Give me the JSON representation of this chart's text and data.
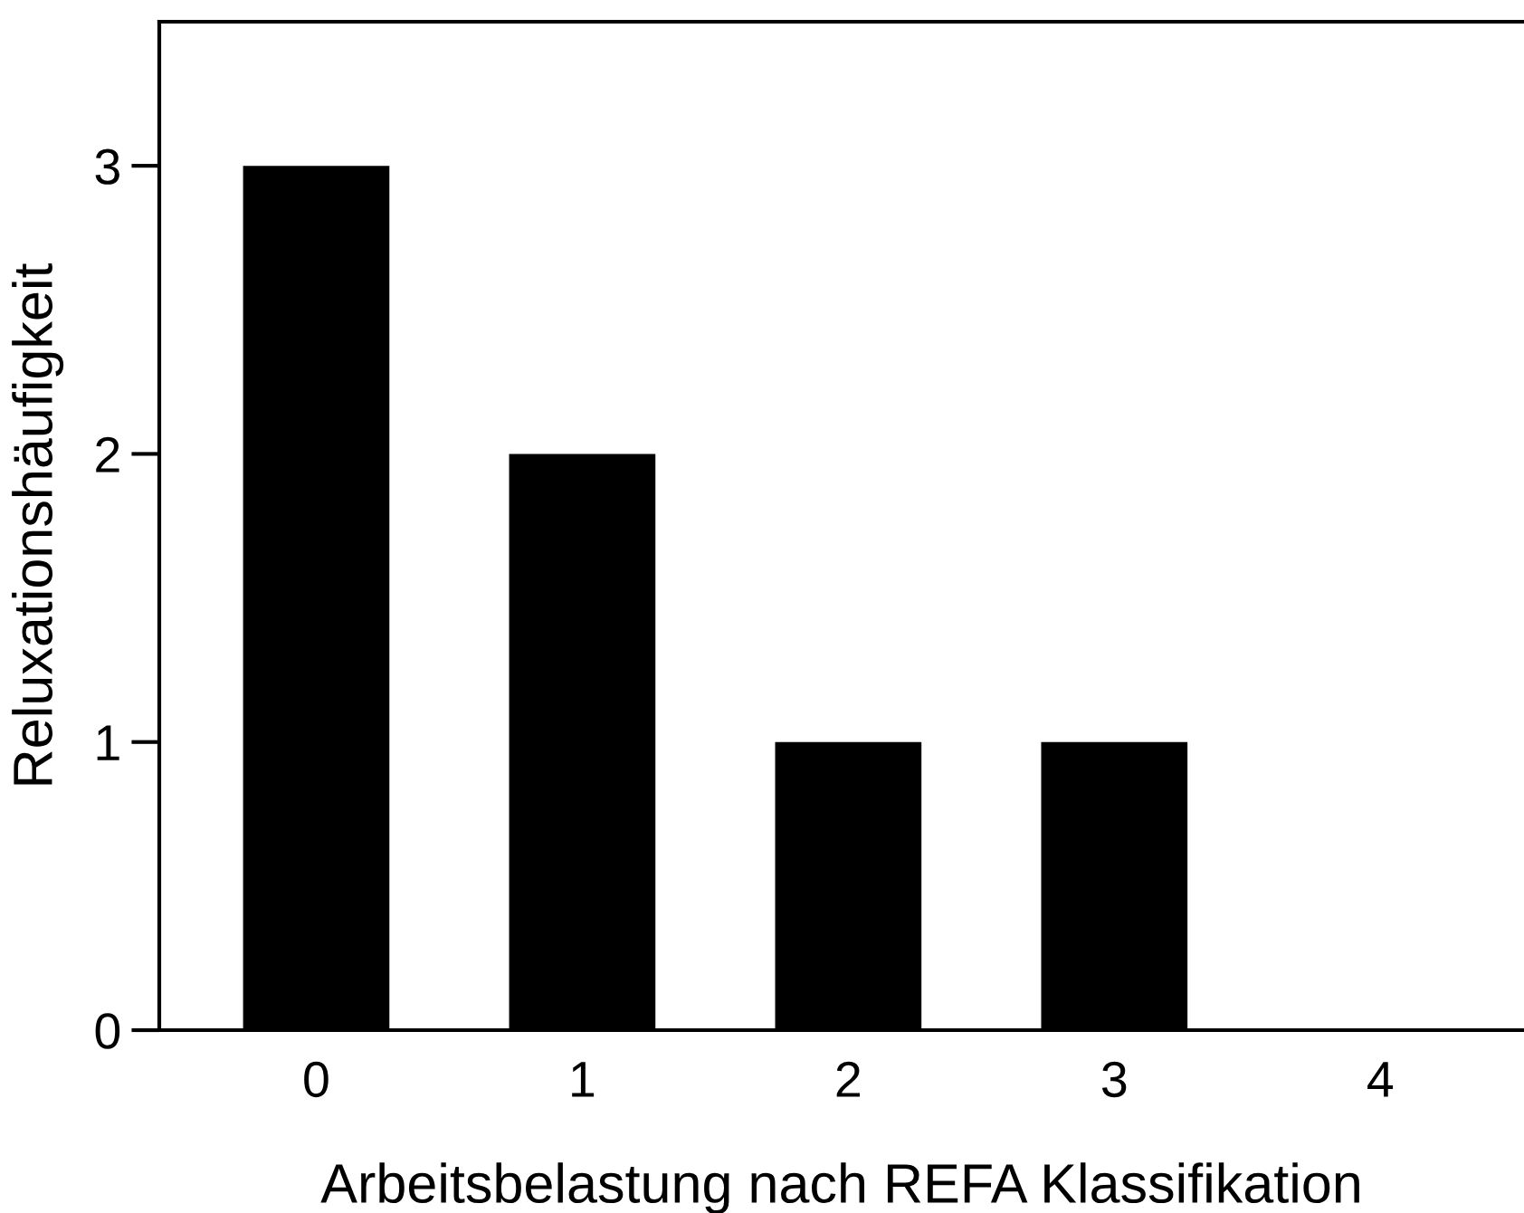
{
  "chart_data": {
    "type": "bar",
    "xlabel": "Arbeitsbelastung nach REFA Klassifikation",
    "ylabel": "Reluxationshäufigkeit",
    "categories": [
      "0",
      "1",
      "2",
      "3",
      "4"
    ],
    "values": [
      3,
      2,
      1,
      1,
      0
    ],
    "color": "#000000",
    "ylim": [
      0,
      3.5
    ],
    "yticks": [
      0,
      1,
      2,
      3
    ]
  }
}
